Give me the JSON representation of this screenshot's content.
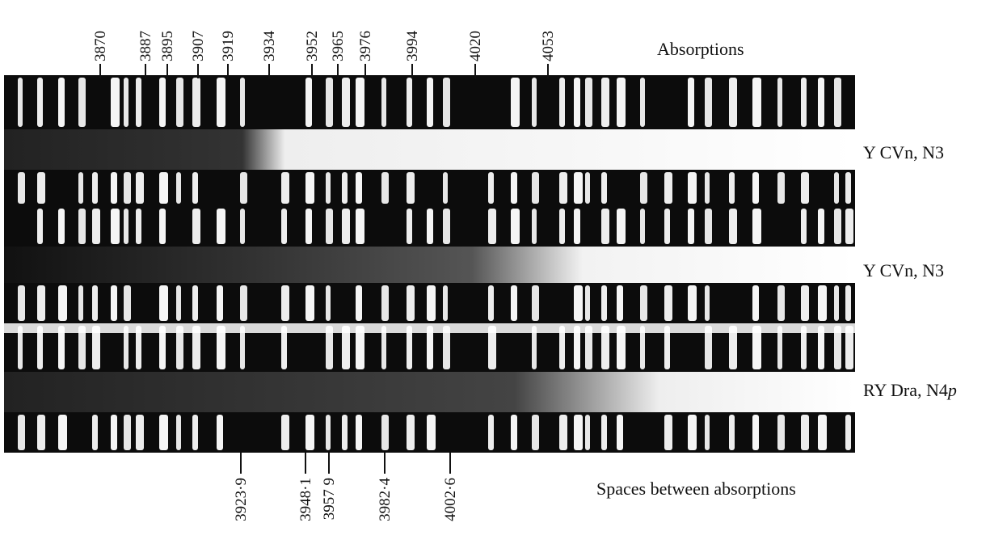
{
  "header": "Absorptions",
  "top_labels": [
    "3870",
    "3887",
    "3895",
    "3907",
    "3919",
    "3934",
    "3952",
    "3965",
    "3976",
    "3994",
    "4020",
    "4053"
  ],
  "spectra": [
    {
      "label": "Y CVn, N3"
    },
    {
      "label": "Y CVn, N3"
    },
    {
      "label": "RY Dra, N4",
      "italic": "p"
    }
  ],
  "bottom_labels": [
    "3923·9",
    "3948·1",
    "3957 9",
    "3982·4",
    "4002·6"
  ],
  "footer": "Spaces between absorptions"
}
